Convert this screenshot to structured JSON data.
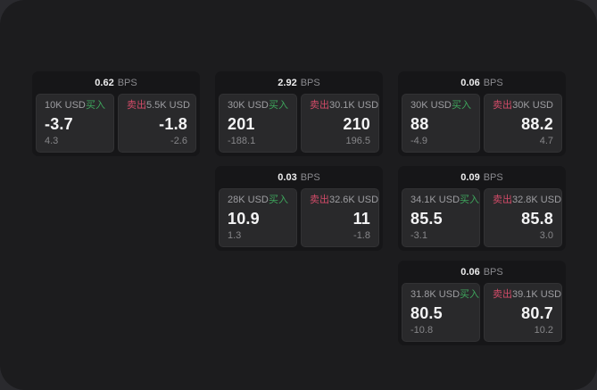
{
  "labels": {
    "bps_unit": "BPS",
    "buy": "买入",
    "sell": "卖出"
  },
  "colors": {
    "buy_accent": "#3ea55c",
    "sell_accent": "#d24b68",
    "panel_background": "#1c1c1e",
    "card_background": "#161618",
    "tile_background": "#29292b"
  },
  "cards": [
    {
      "bps": "0.62",
      "buy": {
        "notional": "10K USD",
        "price": "-3.7",
        "delta": "4.3"
      },
      "sell": {
        "notional": "5.5K USD",
        "price": "-1.8",
        "delta": "-2.6"
      }
    },
    {
      "bps": "2.92",
      "buy": {
        "notional": "30K USD",
        "price": "201",
        "delta": "-188.1"
      },
      "sell": {
        "notional": "30.1K USD",
        "price": "210",
        "delta": "196.5"
      }
    },
    {
      "bps": "0.06",
      "buy": {
        "notional": "30K USD",
        "price": "88",
        "delta": "-4.9"
      },
      "sell": {
        "notional": "30K USD",
        "price": "88.2",
        "delta": "4.7"
      }
    },
    {
      "bps": "0.03",
      "buy": {
        "notional": "28K USD",
        "price": "10.9",
        "delta": "1.3"
      },
      "sell": {
        "notional": "32.6K USD",
        "price": "11",
        "delta": "-1.8"
      }
    },
    {
      "bps": "0.09",
      "buy": {
        "notional": "34.1K USD",
        "price": "85.5",
        "delta": "-3.1"
      },
      "sell": {
        "notional": "32.8K USD",
        "price": "85.8",
        "delta": "3.0"
      }
    },
    {
      "bps": "0.06",
      "buy": {
        "notional": "31.8K USD",
        "price": "80.5",
        "delta": "-10.8"
      },
      "sell": {
        "notional": "39.1K USD",
        "price": "80.7",
        "delta": "10.2"
      }
    }
  ]
}
